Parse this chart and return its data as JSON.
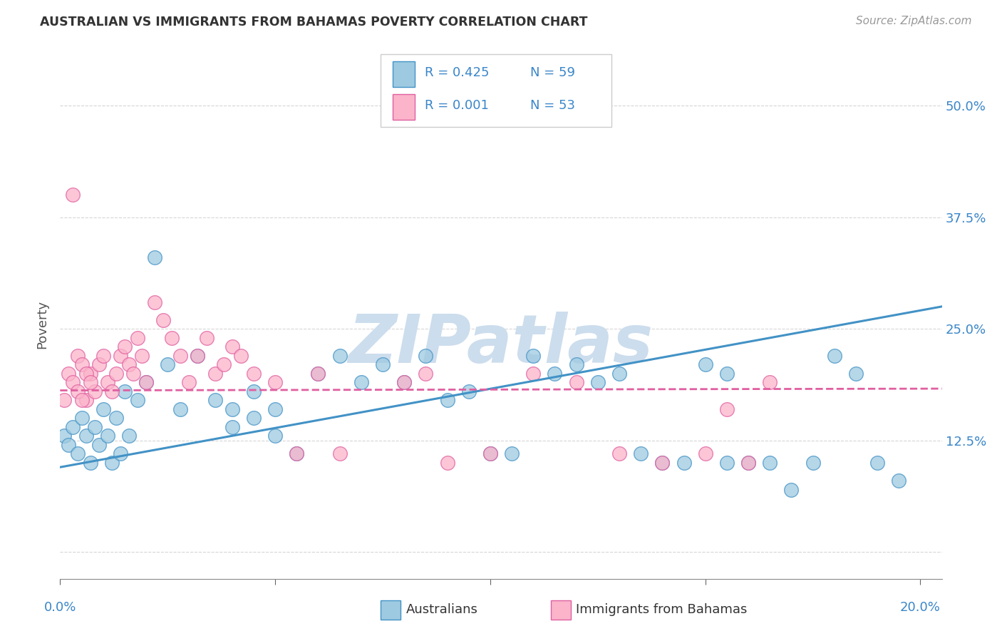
{
  "title": "AUSTRALIAN VS IMMIGRANTS FROM BAHAMAS POVERTY CORRELATION CHART",
  "source": "Source: ZipAtlas.com",
  "ylabel": "Poverty",
  "xlim": [
    0.0,
    0.205
  ],
  "ylim": [
    -0.03,
    0.54
  ],
  "xticks": [
    0.0,
    0.05,
    0.1,
    0.15,
    0.2
  ],
  "xtick_labels": [
    "0.0%",
    "",
    "",
    "",
    "20.0%"
  ],
  "yticks": [
    0.0,
    0.125,
    0.25,
    0.375,
    0.5
  ],
  "ytick_labels": [
    "",
    "12.5%",
    "25.0%",
    "37.5%",
    "50.0%"
  ],
  "watermark_text": "ZIPatlas",
  "legend_r1": "R = 0.425",
  "legend_n1": "N = 59",
  "legend_r2": "R = 0.001",
  "legend_n2": "N = 53",
  "color_blue_face": "#9ecae1",
  "color_blue_edge": "#4292c6",
  "color_pink_face": "#fbb4ca",
  "color_pink_edge": "#e05fa0",
  "color_blue_line": "#4292c6",
  "color_pink_line": "#e05fa0",
  "color_axis_text": "#3a86c8",
  "color_title": "#333333",
  "color_source": "#999999",
  "color_watermark": "#ccdded",
  "blue_trend_x0": 0.0,
  "blue_trend_y0": 0.095,
  "blue_trend_x1": 0.205,
  "blue_trend_y1": 0.275,
  "pink_trend_x0": 0.0,
  "pink_trend_y0": 0.181,
  "pink_trend_x1": 0.205,
  "pink_trend_y1": 0.183,
  "australians_x": [
    0.001,
    0.002,
    0.003,
    0.004,
    0.005,
    0.006,
    0.007,
    0.008,
    0.009,
    0.01,
    0.011,
    0.012,
    0.013,
    0.014,
    0.015,
    0.016,
    0.018,
    0.02,
    0.022,
    0.025,
    0.028,
    0.032,
    0.036,
    0.04,
    0.045,
    0.05,
    0.055,
    0.06,
    0.065,
    0.07,
    0.075,
    0.08,
    0.085,
    0.09,
    0.095,
    0.1,
    0.105,
    0.11,
    0.115,
    0.12,
    0.125,
    0.13,
    0.135,
    0.14,
    0.145,
    0.15,
    0.155,
    0.16,
    0.165,
    0.17,
    0.175,
    0.18,
    0.185,
    0.19,
    0.195,
    0.04,
    0.045,
    0.05,
    0.155
  ],
  "australians_y": [
    0.13,
    0.12,
    0.14,
    0.11,
    0.15,
    0.13,
    0.1,
    0.14,
    0.12,
    0.16,
    0.13,
    0.1,
    0.15,
    0.11,
    0.18,
    0.13,
    0.17,
    0.19,
    0.33,
    0.21,
    0.16,
    0.22,
    0.17,
    0.14,
    0.18,
    0.16,
    0.11,
    0.2,
    0.22,
    0.19,
    0.21,
    0.19,
    0.22,
    0.17,
    0.18,
    0.11,
    0.11,
    0.22,
    0.2,
    0.21,
    0.19,
    0.2,
    0.11,
    0.1,
    0.1,
    0.21,
    0.2,
    0.1,
    0.1,
    0.07,
    0.1,
    0.22,
    0.2,
    0.1,
    0.08,
    0.16,
    0.15,
    0.13,
    0.1
  ],
  "bahamas_x": [
    0.001,
    0.002,
    0.003,
    0.004,
    0.005,
    0.006,
    0.007,
    0.008,
    0.009,
    0.01,
    0.011,
    0.012,
    0.013,
    0.014,
    0.015,
    0.016,
    0.017,
    0.018,
    0.019,
    0.02,
    0.022,
    0.024,
    0.026,
    0.028,
    0.03,
    0.032,
    0.034,
    0.036,
    0.038,
    0.04,
    0.042,
    0.045,
    0.05,
    0.055,
    0.06,
    0.065,
    0.08,
    0.085,
    0.09,
    0.1,
    0.11,
    0.12,
    0.13,
    0.14,
    0.15,
    0.155,
    0.16,
    0.165,
    0.003,
    0.004,
    0.005,
    0.006,
    0.007
  ],
  "bahamas_y": [
    0.17,
    0.2,
    0.19,
    0.22,
    0.21,
    0.17,
    0.2,
    0.18,
    0.21,
    0.22,
    0.19,
    0.18,
    0.2,
    0.22,
    0.23,
    0.21,
    0.2,
    0.24,
    0.22,
    0.19,
    0.28,
    0.26,
    0.24,
    0.22,
    0.19,
    0.22,
    0.24,
    0.2,
    0.21,
    0.23,
    0.22,
    0.2,
    0.19,
    0.11,
    0.2,
    0.11,
    0.19,
    0.2,
    0.1,
    0.11,
    0.2,
    0.19,
    0.11,
    0.1,
    0.11,
    0.16,
    0.1,
    0.19,
    0.4,
    0.18,
    0.17,
    0.2,
    0.19
  ]
}
